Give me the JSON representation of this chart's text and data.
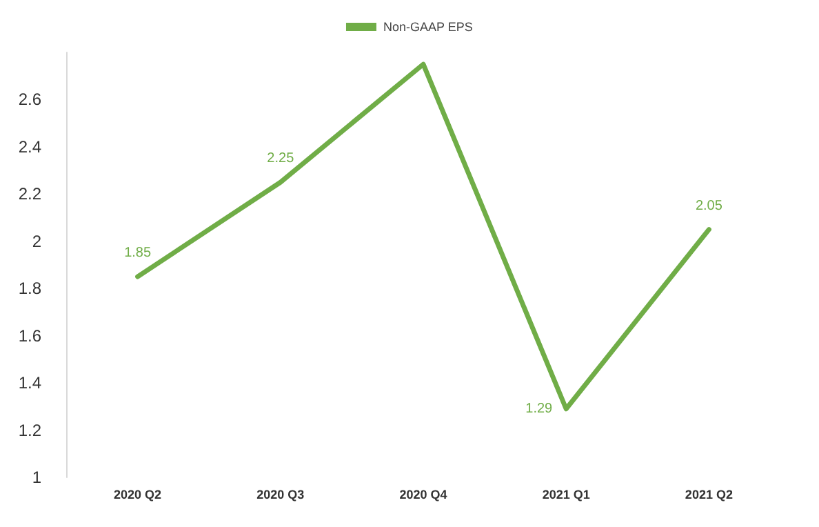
{
  "chart_data": {
    "type": "line",
    "categories": [
      "2020 Q2",
      "2020 Q3",
      "2020 Q4",
      "2021 Q1",
      "2021 Q2"
    ],
    "series": [
      {
        "name": "Non-GAAP EPS",
        "color": "#70ad47",
        "values": [
          1.85,
          2.25,
          2.75,
          1.29,
          2.05
        ],
        "value_labels": [
          "1.85",
          "2.25",
          null,
          "1.29",
          "2.05"
        ]
      }
    ],
    "ylim": [
      1,
      2.8
    ],
    "yticks": [
      1,
      1.2,
      1.4,
      1.6,
      1.8,
      2,
      2.2,
      2.4,
      2.6
    ],
    "grid": false,
    "legend": "top",
    "marker": "none"
  }
}
